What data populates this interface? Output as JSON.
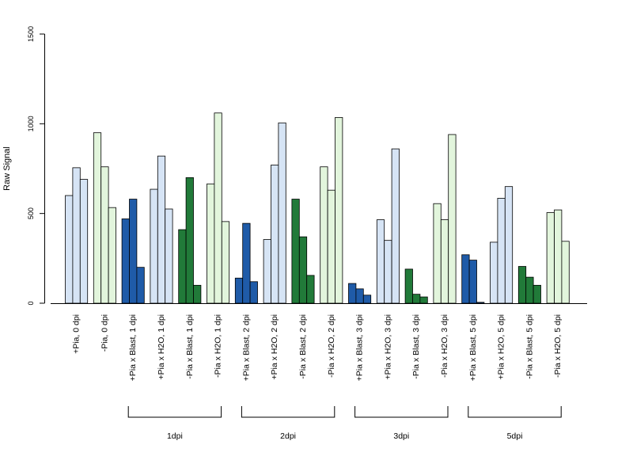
{
  "chart_data": {
    "type": "bar",
    "title": "",
    "xlabel": "",
    "ylabel": "Raw Signal",
    "ylim": [
      0,
      1500
    ],
    "yticks": [
      0,
      500,
      1000,
      1500
    ],
    "grid": false,
    "colors": {
      "light_blue": "#d6e4f5",
      "light_green": "#e2f5dc",
      "dark_blue": "#1f5ba8",
      "dark_green": "#217a39"
    },
    "groups": [
      {
        "label": "+Pia, 0 dpi",
        "color": "light_blue",
        "values": [
          600,
          755,
          690
        ]
      },
      {
        "label": "-Pia, 0 dpi",
        "color": "light_green",
        "values": [
          950,
          760,
          533
        ]
      },
      {
        "label": "+Pia x Blast, 1 dpi",
        "color": "dark_blue",
        "values": [
          470,
          580,
          200
        ]
      },
      {
        "label": "+Pia x H2O, 1 dpi",
        "color": "light_blue",
        "values": [
          635,
          820,
          525
        ]
      },
      {
        "label": "-Pia x Blast, 1 dpi",
        "color": "dark_green",
        "values": [
          410,
          700,
          100
        ]
      },
      {
        "label": "-Pia x H2O, 1 dpi",
        "color": "light_green",
        "values": [
          665,
          1060,
          455
        ]
      },
      {
        "label": "+Pia x Blast, 2 dpi",
        "color": "dark_blue",
        "values": [
          140,
          445,
          120
        ]
      },
      {
        "label": "+Pia x H2O, 2 dpi",
        "color": "light_blue",
        "values": [
          355,
          770,
          1005
        ]
      },
      {
        "label": "-Pia x Blast, 2 dpi",
        "color": "dark_green",
        "values": [
          580,
          370,
          155
        ]
      },
      {
        "label": "-Pia x H2O, 2 dpi",
        "color": "light_green",
        "values": [
          760,
          630,
          1035
        ]
      },
      {
        "label": "+Pia x Blast, 3 dpi",
        "color": "dark_blue",
        "values": [
          110,
          80,
          45
        ]
      },
      {
        "label": "+Pia x H2O, 3 dpi",
        "color": "light_blue",
        "values": [
          465,
          350,
          860
        ]
      },
      {
        "label": "-Pia x Blast, 3 dpi",
        "color": "dark_green",
        "values": [
          190,
          50,
          35
        ]
      },
      {
        "label": "-Pia x H2O, 3 dpi",
        "color": "light_green",
        "values": [
          555,
          465,
          940
        ]
      },
      {
        "label": "+Pia x Blast, 5 dpi",
        "color": "dark_blue",
        "values": [
          270,
          240,
          5
        ]
      },
      {
        "label": "+Pia x H2O, 5 dpi",
        "color": "light_blue",
        "values": [
          340,
          585,
          650
        ]
      },
      {
        "label": "-Pia x Blast, 5 dpi",
        "color": "dark_green",
        "values": [
          205,
          145,
          100
        ]
      },
      {
        "label": "-Pia x H2O, 5 dpi",
        "color": "light_green",
        "values": [
          505,
          520,
          345
        ]
      }
    ],
    "brackets": [
      {
        "label": "1dpi",
        "from": 2,
        "to": 5
      },
      {
        "label": "2dpi",
        "from": 6,
        "to": 9
      },
      {
        "label": "3dpi",
        "from": 10,
        "to": 13
      },
      {
        "label": "5dpi",
        "from": 14,
        "to": 17
      }
    ]
  }
}
